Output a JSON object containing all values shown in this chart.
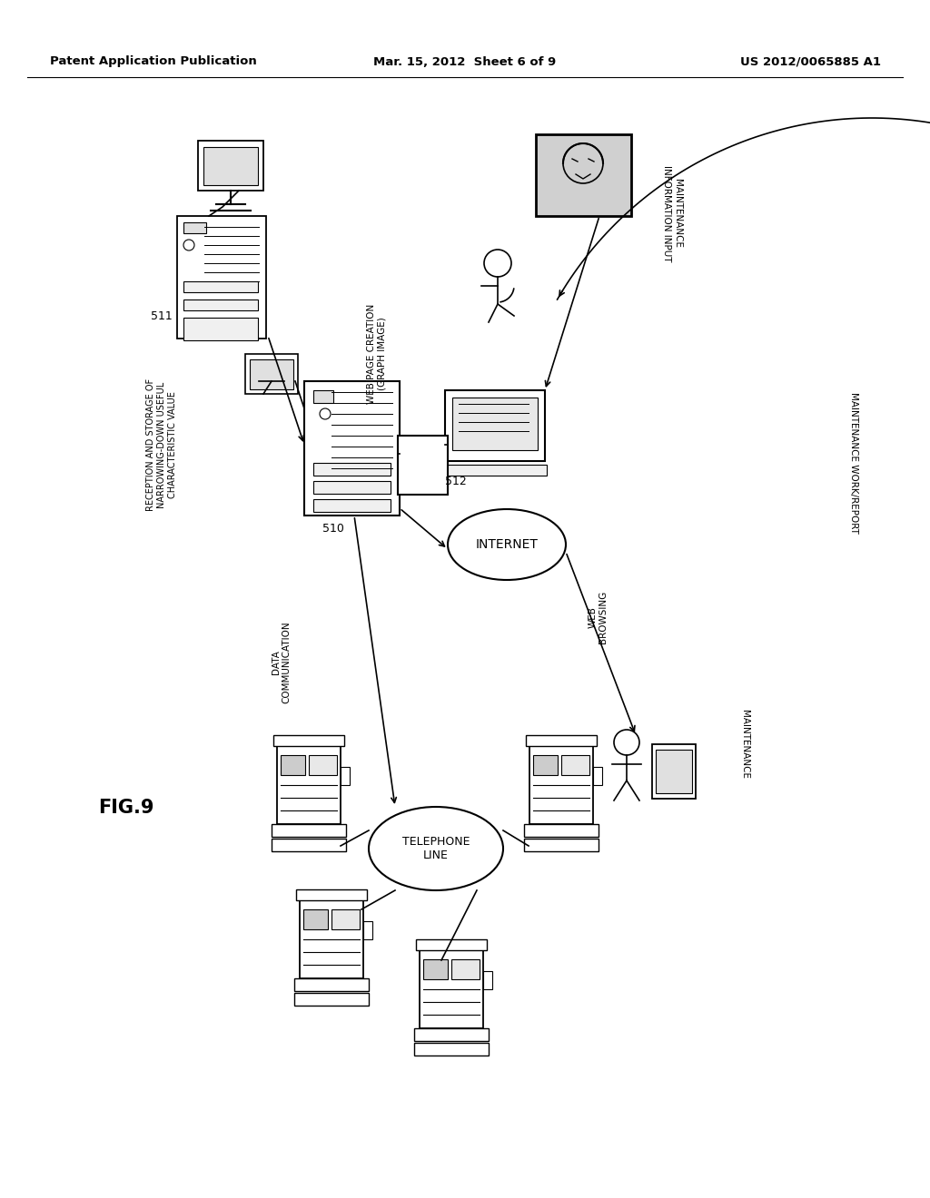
{
  "background_color": "#ffffff",
  "header_left": "Patent Application Publication",
  "header_center": "Mar. 15, 2012  Sheet 6 of 9",
  "header_right": "US 2012/0065885 A1",
  "fig_label": "FIG.9",
  "labels": {
    "511": "511",
    "512": "512",
    "510": "510",
    "web_page": "WEB PAGE CREATION\n(GRAPH IMAGE)",
    "maintenance_info": "MAINTENANCE\nINFORMATION INPUT",
    "reception": "RECEPTION AND STORAGE OF\nNARROWING-DOWN USEFUL\nCHARACTERISTIC VALUE",
    "data_comm": "DATA\nCOMMUNICATION",
    "internet": "INTERNET",
    "telephone": "TELEPHONE\nLINE",
    "web_browsing": "WEB\nBROWSING",
    "maintenance_work": "MAINTENANCE WORK/REPORT",
    "maintenance": "MAINTENANCE"
  }
}
